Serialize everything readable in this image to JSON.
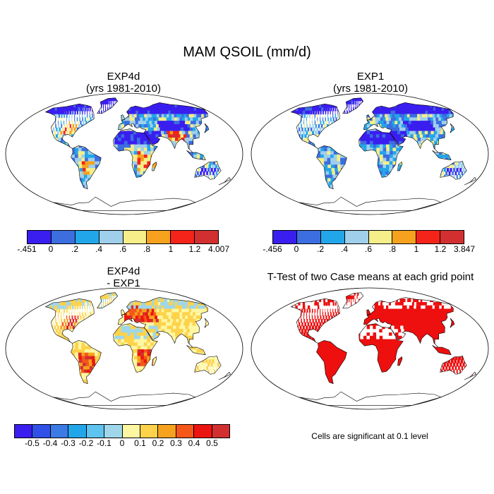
{
  "figure_title": "MAM QSOIL (mm/d)",
  "panels": [
    {
      "title_line1": "EXP4d",
      "title_line2": "(yrs 1981-2010)",
      "field": "exp4d"
    },
    {
      "title_line1": "EXP1",
      "title_line2": "(yrs 1981-2010)",
      "field": "exp1"
    },
    {
      "title_line1": "EXP4d",
      "title_line2": "- EXP1",
      "field": "diff"
    },
    {
      "title_line1": "T-Test of two Case means at each grid point",
      "title_line2": "",
      "field": "ttest"
    }
  ],
  "colorbars": {
    "exp4d": {
      "labels": [
        "-.451",
        "0",
        ".2",
        ".4",
        ".6",
        ".8",
        "1",
        "1.2",
        "4.007"
      ],
      "colors": [
        "#3a1ef0",
        "#3c6ee0",
        "#22a6ea",
        "#9fcfea",
        "#f6ee88",
        "#f6a21e",
        "#f5241a",
        "#d23030"
      ]
    },
    "exp1": {
      "labels": [
        "-.456",
        "0",
        ".2",
        ".4",
        ".6",
        ".8",
        "1",
        "1.2",
        "3.847"
      ],
      "colors": [
        "#3a1ef0",
        "#3c6ee0",
        "#22a6ea",
        "#9fcfea",
        "#f6ee88",
        "#f6a21e",
        "#f5241a",
        "#d23030"
      ]
    },
    "diff": {
      "labels": [
        "-0.5",
        "-0.4",
        "-0.3",
        "-0.2",
        "-0.1",
        "0",
        "0.1",
        "0.2",
        "0.3",
        "0.4",
        "0.5"
      ],
      "colors": [
        "#3a1ef0",
        "#3050e8",
        "#3c7ae6",
        "#22a6ea",
        "#5ec3ee",
        "#9fd6ea",
        "#fef7a2",
        "#fed24a",
        "#f6a21e",
        "#f5561a",
        "#ec1410",
        "#d23030"
      ]
    }
  },
  "significance_note": "Cells are significant at 0.1 level",
  "colors": {
    "sig": "#ee0f0f",
    "land_outline": "#000000"
  }
}
